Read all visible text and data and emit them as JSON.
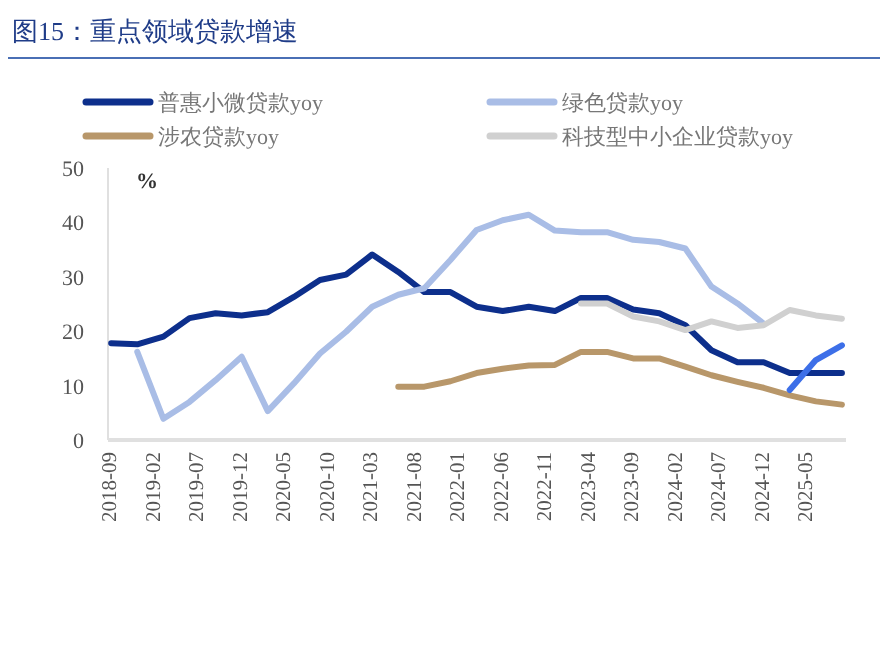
{
  "chart_data": {
    "type": "line",
    "title": "图15：重点领域贷款增速",
    "ylabel": "%",
    "xlim": [
      "2018-08-20",
      "2025-09-15"
    ],
    "ylim": [
      0,
      50
    ],
    "yticks": [
      0,
      10,
      20,
      30,
      40,
      50
    ],
    "xticks": [
      "2018-09",
      "2019-02",
      "2019-07",
      "2019-12",
      "2020-05",
      "2020-10",
      "2021-03",
      "2021-08",
      "2022-01",
      "2022-06",
      "2022-11",
      "2023-04",
      "2023-09",
      "2024-02",
      "2024-07",
      "2024-12",
      "2025-05"
    ],
    "x": [
      "2018-09",
      "2018-12",
      "2019-03",
      "2019-06",
      "2019-09",
      "2019-12",
      "2020-03",
      "2020-06",
      "2020-09",
      "2020-12",
      "2021-03",
      "2021-06",
      "2021-09",
      "2021-12",
      "2022-03",
      "2022-06",
      "2022-09",
      "2022-12",
      "2023-03",
      "2023-06",
      "2023-09",
      "2023-12",
      "2024-03",
      "2024-06",
      "2024-09",
      "2024-12",
      "2025-03",
      "2025-06",
      "2025-09"
    ],
    "grid": false,
    "legend": "top",
    "marker": "none",
    "line_style": "solid",
    "series": [
      {
        "name": "普惠小微贷款yoy",
        "color": "#0d2f8c",
        "values": [
          17.8,
          17.6,
          19,
          22.4,
          23.3,
          22.9,
          23.5,
          26.3,
          29.4,
          30.4,
          34.1,
          30.9,
          27.2,
          27.2,
          24.5,
          23.7,
          24.5,
          23.7,
          26.1,
          26.1,
          24,
          23.3,
          21.1,
          16.5,
          14.3,
          14.3,
          12.3,
          12.3,
          12.3
        ]
      },
      {
        "name": "绿色贷款yoy",
        "color": "#a9bde6",
        "values": [
          null,
          16.2,
          3.9,
          7,
          11,
          15.3,
          5.3,
          10.4,
          15.9,
          19.9,
          24.5,
          26.7,
          27.9,
          33.1,
          38.6,
          40.4,
          41.4,
          38.5,
          38.2,
          38.2,
          36.8,
          36.4,
          35.2,
          28.2,
          25.1,
          21.4,
          null,
          null,
          null
        ]
      },
      {
        "name": "涉农贷款yoy",
        "color": "#b8976a",
        "values": [
          null,
          null,
          null,
          null,
          null,
          null,
          null,
          null,
          null,
          null,
          null,
          9.8,
          9.8,
          10.8,
          12.3,
          13.1,
          13.7,
          13.8,
          16.2,
          16.2,
          15,
          15,
          13.5,
          11.9,
          10.7,
          9.6,
          8.2,
          7.1,
          6.5
        ]
      },
      {
        "name": "科技型中小企业贷款yoy",
        "color": "#d0d0d0",
        "values": [
          null,
          null,
          null,
          null,
          null,
          null,
          null,
          null,
          null,
          null,
          null,
          null,
          null,
          null,
          null,
          null,
          null,
          null,
          25.1,
          25.1,
          22.7,
          21.8,
          20.2,
          21.8,
          20.6,
          21.1,
          23.9,
          22.9,
          22.3
        ]
      },
      {
        "color": "#3d6fe8",
        "values": [
          null,
          null,
          null,
          null,
          null,
          null,
          null,
          null,
          null,
          null,
          null,
          null,
          null,
          null,
          null,
          null,
          null,
          null,
          null,
          null,
          null,
          null,
          null,
          null,
          null,
          null,
          9.2,
          14.7,
          17.4
        ]
      }
    ]
  }
}
